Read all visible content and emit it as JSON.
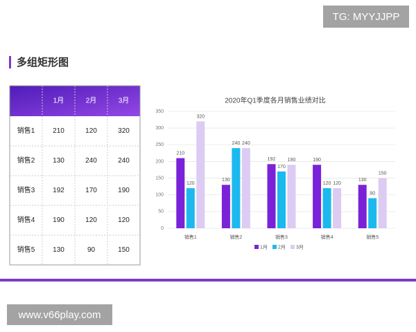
{
  "watermark_top": "TG: MYYJJPP",
  "header": {
    "title": "多组矩形图"
  },
  "table": {
    "header": [
      "1月",
      "2月",
      "3月"
    ],
    "rows": [
      {
        "name": "销售1",
        "values": [
          210,
          120,
          320
        ]
      },
      {
        "name": "销售2",
        "values": [
          130,
          240,
          240
        ]
      },
      {
        "name": "销售3",
        "values": [
          192,
          170,
          190
        ]
      },
      {
        "name": "销售4",
        "values": [
          190,
          120,
          120
        ]
      },
      {
        "name": "销售5",
        "values": [
          130,
          90,
          150
        ]
      }
    ]
  },
  "chart_data": {
    "type": "bar",
    "title": "2020年Q1季度各月销售业绩对比",
    "categories": [
      "销售1",
      "销售2",
      "销售3",
      "销售4",
      "销售5"
    ],
    "series": [
      {
        "name": "1月",
        "color": "#7a22d8",
        "values": [
          210,
          130,
          192,
          190,
          130
        ]
      },
      {
        "name": "2月",
        "color": "#1cb9ee",
        "values": [
          120,
          240,
          170,
          120,
          90
        ]
      },
      {
        "name": "3月",
        "color": "#dccbf2",
        "values": [
          320,
          240,
          190,
          120,
          150
        ]
      }
    ],
    "ylim": [
      0,
      350
    ],
    "yticks": [
      0,
      50,
      100,
      150,
      200,
      250,
      300,
      350
    ],
    "grid": true,
    "legend": "bottom"
  },
  "watermark_bottom": "www.v66play.com"
}
